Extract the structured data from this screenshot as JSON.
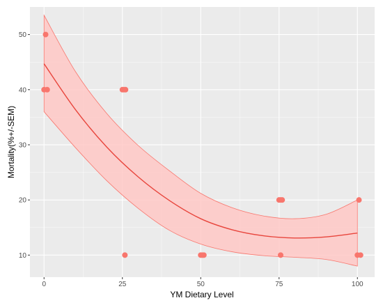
{
  "chart_data": {
    "type": "scatter",
    "xlabel": "YM Dietary Level",
    "ylabel": "Mortality(%+/-SEM)",
    "xlim": [
      -4.5,
      105.5
    ],
    "ylim": [
      6,
      55
    ],
    "x_ticks": [
      0,
      25,
      50,
      75,
      100
    ],
    "y_ticks": [
      10,
      20,
      30,
      40,
      50
    ],
    "x_tick_labels": [
      "0",
      "25",
      "50",
      "75",
      "100"
    ],
    "y_tick_labels": [
      "10",
      "20",
      "30",
      "40",
      "50"
    ],
    "grid": true,
    "legend": "none",
    "points": [
      {
        "x": 0,
        "y": 40
      },
      {
        "x": 0.5,
        "y": 50
      },
      {
        "x": 1,
        "y": 40
      },
      {
        "x": 25,
        "y": 40
      },
      {
        "x": 25.5,
        "y": 40
      },
      {
        "x": 26,
        "y": 40
      },
      {
        "x": 25.8,
        "y": 10
      },
      {
        "x": 50,
        "y": 10
      },
      {
        "x": 50.5,
        "y": 10
      },
      {
        "x": 51,
        "y": 10
      },
      {
        "x": 75,
        "y": 20
      },
      {
        "x": 75.5,
        "y": 20
      },
      {
        "x": 76,
        "y": 20
      },
      {
        "x": 75.5,
        "y": 10
      },
      {
        "x": 100,
        "y": 10
      },
      {
        "x": 100.5,
        "y": 20
      },
      {
        "x": 101,
        "y": 10
      }
    ],
    "fit": {
      "x": [
        0,
        10,
        20,
        30,
        40,
        50,
        60,
        70,
        80,
        90,
        100
      ],
      "y": [
        44.7,
        36.4,
        29.6,
        24.2,
        19.9,
        16.6,
        14.6,
        13.5,
        13.1,
        13.3,
        14.0
      ],
      "lower": [
        36.0,
        29.5,
        23.5,
        18.5,
        14.5,
        12.0,
        10.6,
        9.9,
        9.6,
        9.2,
        8.0
      ],
      "upper": [
        53.5,
        43.3,
        35.7,
        29.9,
        25.3,
        21.2,
        18.6,
        17.1,
        16.6,
        17.4,
        20.0
      ]
    },
    "colors": {
      "panel_bg": "#ebebeb",
      "grid_major": "#ffffff",
      "point": "#f8766d",
      "ribbon_fill": "#ffc8c5",
      "ribbon_edge": "#f8766d",
      "fit_line": "#e8453c"
    }
  }
}
